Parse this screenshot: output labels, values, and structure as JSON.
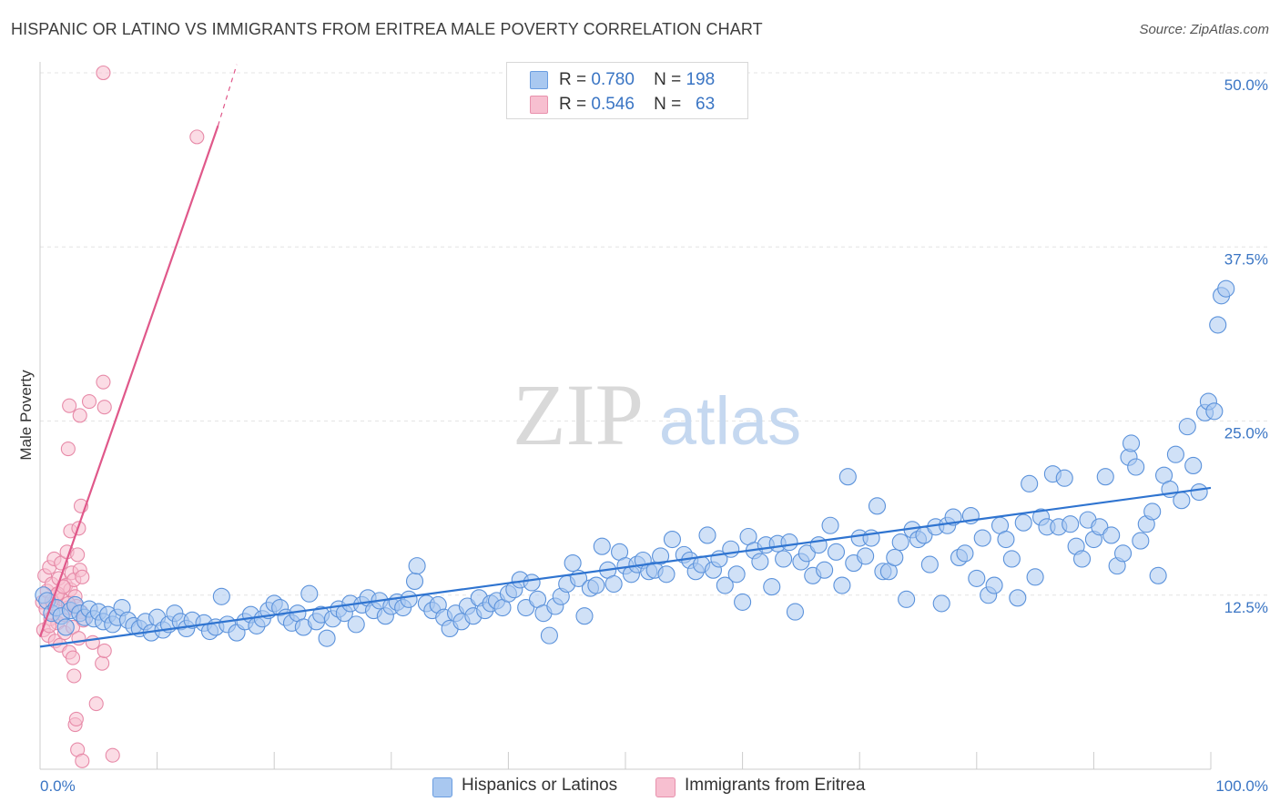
{
  "title": "HISPANIC OR LATINO VS IMMIGRANTS FROM ERITREA MALE POVERTY CORRELATION CHART",
  "source": "Source: ZipAtlas.com",
  "watermark": {
    "zip": "ZIP",
    "atlas": "atlas"
  },
  "legend": {
    "rows": [
      {
        "r_label": "R =",
        "r_value": "0.780",
        "n_label": "N =",
        "n_value": "198",
        "color": "#a9c8f0",
        "border": "#6a9de0"
      },
      {
        "r_label": "R =",
        "r_value": "0.546",
        "n_label": "N =",
        "n_value": "63",
        "color": "#f7bfd0",
        "border": "#e891ad"
      }
    ]
  },
  "bottom_legend": {
    "items": [
      {
        "label": "Hispanics or Latinos",
        "color": "#a9c8f0",
        "border": "#6a9de0"
      },
      {
        "label": "Immigrants from Eritrea",
        "color": "#f7bfd0",
        "border": "#e891ad"
      }
    ]
  },
  "chart_data": {
    "type": "scatter",
    "title": "HISPANIC OR LATINO VS IMMIGRANTS FROM ERITREA MALE POVERTY CORRELATION CHART",
    "xlabel": "",
    "ylabel": "Male Poverty",
    "xlim": [
      0,
      100
    ],
    "ylim": [
      0,
      50
    ],
    "x_tick_labels": [
      "0.0%",
      "100.0%"
    ],
    "y_ticks": [
      12.5,
      25.0,
      37.5,
      50.0
    ],
    "y_tick_labels": [
      "12.5%",
      "25.0%",
      "37.5%",
      "50.0%"
    ],
    "grid": true,
    "series": [
      {
        "name": "Hispanics or Latinos",
        "color": "#a9c8f0",
        "edge": "#5b92db",
        "line_color": "#2f74d0",
        "trend": {
          "x": [
            0,
            100
          ],
          "y": [
            8.8,
            20.2
          ]
        },
        "points": [
          [
            0.3,
            12.5
          ],
          [
            0.6,
            12.1
          ],
          [
            1.0,
            11.2
          ],
          [
            1.4,
            11.6
          ],
          [
            1.8,
            11.0
          ],
          [
            2.2,
            10.2
          ],
          [
            2.6,
            11.4
          ],
          [
            3.0,
            11.8
          ],
          [
            3.4,
            11.2
          ],
          [
            3.8,
            10.9
          ],
          [
            4.2,
            11.5
          ],
          [
            4.6,
            10.8
          ],
          [
            5.0,
            11.3
          ],
          [
            5.4,
            10.6
          ],
          [
            5.8,
            11.1
          ],
          [
            6.2,
            10.4
          ],
          [
            6.6,
            10.9
          ],
          [
            7.0,
            11.6
          ],
          [
            7.5,
            10.7
          ],
          [
            8.0,
            10.3
          ],
          [
            8.5,
            10.1
          ],
          [
            9.0,
            10.6
          ],
          [
            9.5,
            9.8
          ],
          [
            10.0,
            10.9
          ],
          [
            10.5,
            10.0
          ],
          [
            11.0,
            10.4
          ],
          [
            11.5,
            11.2
          ],
          [
            12.0,
            10.6
          ],
          [
            12.5,
            10.1
          ],
          [
            13.0,
            10.7
          ],
          [
            14.0,
            10.5
          ],
          [
            14.5,
            9.9
          ],
          [
            15.0,
            10.2
          ],
          [
            15.5,
            12.4
          ],
          [
            16.0,
            10.4
          ],
          [
            16.8,
            9.8
          ],
          [
            17.5,
            10.6
          ],
          [
            18.0,
            11.1
          ],
          [
            18.5,
            10.3
          ],
          [
            19.0,
            10.8
          ],
          [
            19.5,
            11.4
          ],
          [
            20.0,
            11.9
          ],
          [
            20.5,
            11.6
          ],
          [
            21.0,
            10.9
          ],
          [
            21.5,
            10.5
          ],
          [
            22.0,
            11.2
          ],
          [
            22.5,
            10.2
          ],
          [
            23.0,
            12.6
          ],
          [
            23.6,
            10.6
          ],
          [
            24.0,
            11.1
          ],
          [
            24.5,
            9.4
          ],
          [
            25.0,
            10.8
          ],
          [
            25.5,
            11.5
          ],
          [
            26.0,
            11.2
          ],
          [
            26.5,
            11.9
          ],
          [
            27.0,
            10.4
          ],
          [
            27.5,
            11.8
          ],
          [
            28.0,
            12.3
          ],
          [
            28.5,
            11.4
          ],
          [
            29.0,
            12.1
          ],
          [
            29.5,
            11.0
          ],
          [
            30.0,
            11.7
          ],
          [
            30.5,
            12.0
          ],
          [
            31.0,
            11.6
          ],
          [
            31.5,
            12.2
          ],
          [
            32.0,
            13.5
          ],
          [
            32.2,
            14.6
          ],
          [
            33.0,
            11.9
          ],
          [
            33.5,
            11.4
          ],
          [
            34.0,
            11.8
          ],
          [
            34.5,
            10.9
          ],
          [
            35.0,
            10.1
          ],
          [
            35.5,
            11.2
          ],
          [
            36.0,
            10.6
          ],
          [
            36.5,
            11.7
          ],
          [
            37.0,
            11.0
          ],
          [
            37.5,
            12.3
          ],
          [
            38.0,
            11.4
          ],
          [
            38.5,
            11.9
          ],
          [
            39.0,
            12.1
          ],
          [
            39.5,
            11.6
          ],
          [
            40.0,
            12.6
          ],
          [
            40.5,
            12.9
          ],
          [
            41.0,
            13.6
          ],
          [
            41.5,
            11.6
          ],
          [
            42.0,
            13.4
          ],
          [
            42.5,
            12.2
          ],
          [
            43.0,
            11.2
          ],
          [
            43.5,
            9.6
          ],
          [
            44.0,
            11.7
          ],
          [
            44.5,
            12.4
          ],
          [
            45.0,
            13.3
          ],
          [
            45.5,
            14.8
          ],
          [
            46.0,
            13.7
          ],
          [
            46.5,
            11.0
          ],
          [
            47.0,
            13.0
          ],
          [
            47.5,
            13.2
          ],
          [
            48.0,
            16.0
          ],
          [
            48.5,
            14.3
          ],
          [
            49.0,
            13.3
          ],
          [
            49.5,
            15.6
          ],
          [
            50.0,
            14.6
          ],
          [
            50.5,
            14.0
          ],
          [
            51.0,
            14.7
          ],
          [
            51.5,
            15.0
          ],
          [
            52.0,
            14.2
          ],
          [
            52.5,
            14.3
          ],
          [
            53.0,
            15.3
          ],
          [
            53.5,
            14.0
          ],
          [
            54.0,
            16.5
          ],
          [
            55.0,
            15.4
          ],
          [
            55.5,
            15.0
          ],
          [
            56.0,
            14.2
          ],
          [
            56.5,
            14.7
          ],
          [
            57.0,
            16.8
          ],
          [
            57.5,
            14.3
          ],
          [
            58.0,
            15.1
          ],
          [
            58.5,
            13.2
          ],
          [
            59.0,
            15.8
          ],
          [
            59.5,
            14.0
          ],
          [
            60.0,
            12.0
          ],
          [
            60.5,
            16.7
          ],
          [
            61.0,
            15.7
          ],
          [
            61.5,
            14.9
          ],
          [
            62.0,
            16.1
          ],
          [
            62.5,
            13.1
          ],
          [
            63.0,
            16.2
          ],
          [
            63.5,
            15.1
          ],
          [
            64.0,
            16.3
          ],
          [
            64.5,
            11.3
          ],
          [
            65.0,
            14.9
          ],
          [
            65.5,
            15.5
          ],
          [
            66.0,
            13.9
          ],
          [
            66.5,
            16.1
          ],
          [
            67.0,
            14.3
          ],
          [
            67.5,
            17.5
          ],
          [
            68.0,
            15.6
          ],
          [
            68.5,
            13.2
          ],
          [
            69.0,
            21.0
          ],
          [
            69.5,
            14.8
          ],
          [
            70.0,
            16.6
          ],
          [
            70.5,
            15.3
          ],
          [
            71.0,
            16.6
          ],
          [
            71.5,
            18.9
          ],
          [
            72.0,
            14.2
          ],
          [
            72.5,
            14.2
          ],
          [
            73.0,
            15.2
          ],
          [
            73.5,
            16.3
          ],
          [
            74.0,
            12.2
          ],
          [
            74.5,
            17.2
          ],
          [
            75.0,
            16.5
          ],
          [
            75.5,
            16.8
          ],
          [
            76.0,
            14.7
          ],
          [
            76.5,
            17.4
          ],
          [
            77.0,
            11.9
          ],
          [
            77.5,
            17.5
          ],
          [
            78.0,
            18.1
          ],
          [
            78.5,
            15.2
          ],
          [
            79.0,
            15.5
          ],
          [
            79.5,
            18.2
          ],
          [
            80.0,
            13.7
          ],
          [
            80.5,
            16.6
          ],
          [
            81.0,
            12.5
          ],
          [
            81.5,
            13.2
          ],
          [
            82.0,
            17.5
          ],
          [
            82.5,
            16.5
          ],
          [
            83.0,
            15.1
          ],
          [
            83.5,
            12.3
          ],
          [
            84.0,
            17.7
          ],
          [
            84.5,
            20.5
          ],
          [
            85.0,
            13.8
          ],
          [
            85.5,
            18.1
          ],
          [
            86.0,
            17.4
          ],
          [
            86.5,
            21.2
          ],
          [
            87.0,
            17.4
          ],
          [
            87.5,
            20.9
          ],
          [
            88.0,
            17.6
          ],
          [
            88.5,
            16.0
          ],
          [
            89.0,
            15.1
          ],
          [
            89.5,
            17.9
          ],
          [
            90.0,
            16.5
          ],
          [
            90.5,
            17.4
          ],
          [
            91.0,
            21.0
          ],
          [
            91.5,
            16.8
          ],
          [
            92.0,
            14.6
          ],
          [
            92.5,
            15.5
          ],
          [
            93.0,
            22.4
          ],
          [
            93.2,
            23.4
          ],
          [
            93.6,
            21.7
          ],
          [
            94.0,
            16.4
          ],
          [
            94.5,
            17.6
          ],
          [
            95.0,
            18.5
          ],
          [
            95.5,
            13.9
          ],
          [
            96.0,
            21.1
          ],
          [
            96.5,
            20.1
          ],
          [
            97.0,
            22.6
          ],
          [
            97.5,
            19.3
          ],
          [
            98.0,
            24.6
          ],
          [
            98.5,
            21.8
          ],
          [
            99.0,
            19.9
          ],
          [
            99.5,
            25.6
          ],
          [
            99.8,
            26.4
          ],
          [
            100.3,
            25.7
          ],
          [
            100.6,
            31.9
          ],
          [
            100.9,
            34.0
          ],
          [
            101.3,
            34.5
          ]
        ]
      },
      {
        "name": "Immigrants from Eritrea",
        "color": "#f7bfd0",
        "edge": "#e78aa8",
        "line_color": "#e0588a",
        "trend": {
          "x": [
            0,
            15.2
          ],
          "y": [
            9.5,
            46.2
          ]
        },
        "trend_dashed": {
          "x": [
            15.2,
            16.8
          ],
          "y": [
            46.2,
            50.6
          ]
        },
        "points": [
          [
            0.2,
            12.0
          ],
          [
            0.3,
            10.0
          ],
          [
            0.4,
            13.9
          ],
          [
            0.5,
            11.5
          ],
          [
            0.6,
            12.8
          ],
          [
            0.7,
            9.6
          ],
          [
            0.8,
            14.5
          ],
          [
            0.9,
            10.8
          ],
          [
            1.0,
            13.3
          ],
          [
            1.1,
            11.9
          ],
          [
            1.2,
            15.1
          ],
          [
            1.3,
            9.2
          ],
          [
            1.4,
            12.5
          ],
          [
            1.5,
            10.5
          ],
          [
            1.6,
            13.7
          ],
          [
            1.7,
            8.9
          ],
          [
            1.8,
            14.8
          ],
          [
            1.9,
            12.2
          ],
          [
            2.0,
            11.1
          ],
          [
            2.1,
            9.8
          ],
          [
            2.2,
            13.2
          ],
          [
            2.3,
            15.6
          ],
          [
            2.4,
            11.6
          ],
          [
            2.5,
            8.4
          ],
          [
            2.6,
            12.9
          ],
          [
            2.7,
            14.1
          ],
          [
            2.8,
            10.2
          ],
          [
            2.9,
            13.6
          ],
          [
            3.0,
            12.4
          ],
          [
            3.1,
            11.7
          ],
          [
            3.2,
            15.4
          ],
          [
            3.3,
            9.4
          ],
          [
            0.8,
            10.3
          ],
          [
            1.0,
            12.1
          ],
          [
            1.5,
            12.6
          ],
          [
            2.0,
            13.1
          ],
          [
            2.4,
            11.9
          ],
          [
            3.4,
            14.3
          ],
          [
            3.5,
            11.3
          ],
          [
            3.6,
            13.8
          ],
          [
            3.7,
            10.7
          ],
          [
            2.5,
            26.1
          ],
          [
            2.4,
            23.0
          ],
          [
            2.6,
            17.1
          ],
          [
            2.8,
            8.0
          ],
          [
            2.9,
            6.7
          ],
          [
            3.0,
            3.2
          ],
          [
            3.1,
            3.6
          ],
          [
            3.2,
            1.4
          ],
          [
            3.3,
            17.3
          ],
          [
            3.4,
            25.4
          ],
          [
            3.5,
            18.9
          ],
          [
            3.6,
            0.6
          ],
          [
            4.2,
            26.4
          ],
          [
            4.5,
            9.1
          ],
          [
            4.8,
            4.7
          ],
          [
            5.5,
            26.0
          ],
          [
            5.4,
            27.8
          ],
          [
            5.3,
            7.6
          ],
          [
            6.2,
            1.0
          ],
          [
            5.5,
            8.5
          ],
          [
            13.4,
            45.4
          ],
          [
            5.4,
            50.0
          ]
        ]
      }
    ]
  }
}
